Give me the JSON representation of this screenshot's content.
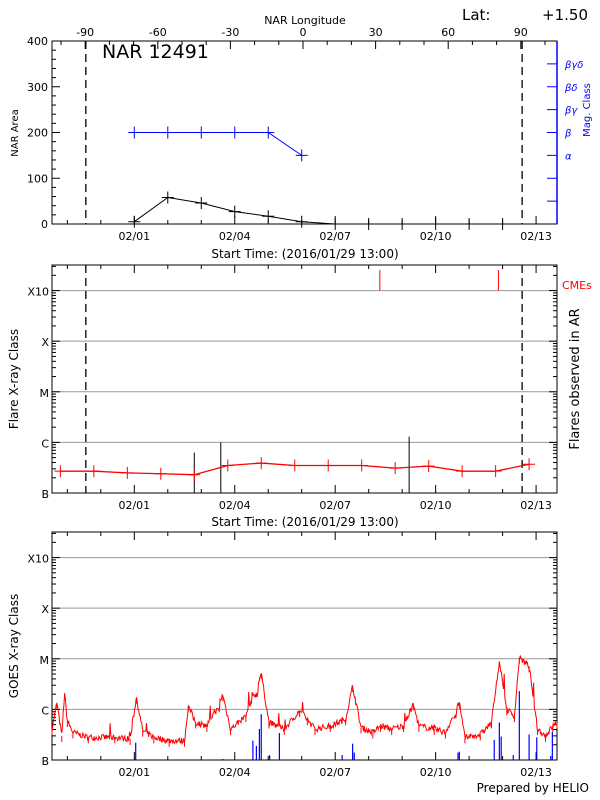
{
  "lat_label": "Lat:",
  "lat_value": "+1.50",
  "footer": "Prepared by HELIO",
  "colors": {
    "area": "#000000",
    "mag_class": "#0000ff",
    "flare_avg": "#ff0000",
    "cme": "#ff0000",
    "flare_obs": "#000000",
    "goes_long": "#ff0000",
    "goes_short": "#0000ff",
    "grid": "#999999"
  },
  "chart_data": [
    {
      "type": "line",
      "title": "NAR 12491",
      "xlabel": "Start Time: (2016/01/29 13:00)",
      "x2label": "NAR Longitude",
      "ylabel": "NAR Area",
      "y2label": "Mag. Class",
      "xlim": [
        "2016-01-29 13:00",
        "2016-02-13 15:00"
      ],
      "xticks": [
        "02/01",
        "02/04",
        "02/07",
        "02/10",
        "02/13"
      ],
      "x2ticks": [
        -90,
        -60,
        -30,
        0,
        30,
        60,
        90
      ],
      "ylim": [
        0,
        400
      ],
      "yticks": [
        0,
        100,
        200,
        300,
        400
      ],
      "y2_categories": [
        "α",
        "β",
        "βγ",
        "βδ",
        "βγδ"
      ],
      "limb_crossings": [
        "2016-01-30 13:15",
        "2016-02-12 14:00"
      ],
      "area_series": {
        "x": [
          "2016-02-01 00:00",
          "2016-02-02 00:00",
          "2016-02-03 00:00",
          "2016-02-04 00:00",
          "2016-02-05 00:00",
          "2016-02-06 00:00",
          "2016-02-07 00:00",
          "2016-02-08 00:00",
          "2016-02-09 00:00",
          "2016-02-10 00:00",
          "2016-02-11 00:00",
          "2016-02-12 00:00"
        ],
        "y": [
          5,
          58,
          46,
          27,
          17,
          5,
          0,
          0,
          0,
          0,
          0,
          0
        ]
      },
      "mag_series": {
        "x": [
          "2016-02-01 00:00",
          "2016-02-02 00:00",
          "2016-02-03 00:00",
          "2016-02-04 00:00",
          "2016-02-05 00:00",
          "2016-02-06 00:00"
        ],
        "y": [
          "β",
          "β",
          "β",
          "β",
          "β",
          "α"
        ]
      }
    },
    {
      "type": "line",
      "xlabel": "Start Time: (2016/01/29 13:00)",
      "ylabel": "Flare X-ray Class",
      "y2label": "Flares observed in AR",
      "cme_label": "CMEs",
      "scale": "log",
      "xlim": [
        "2016-01-29 13:00",
        "2016-02-13 15:00"
      ],
      "xticks": [
        "02/01",
        "02/04",
        "02/07",
        "02/10",
        "02/13"
      ],
      "ylim_wm2": [
        1e-07,
        0.0032
      ],
      "yticks": [
        {
          "label": "B",
          "value": 1e-07
        },
        {
          "label": "C",
          "value": 1e-06
        },
        {
          "label": "M",
          "value": 1e-05
        },
        {
          "label": "X",
          "value": 0.0001
        },
        {
          "label": "X10",
          "value": 0.001
        }
      ],
      "grid": true,
      "limb_crossings": [
        "2016-01-30 13:15",
        "2016-02-12 14:00"
      ],
      "daily_flux": {
        "x": [
          "2016-01-29 19:00",
          "2016-01-30 19:00",
          "2016-01-31 19:00",
          "2016-02-01 19:00",
          "2016-02-02 19:00",
          "2016-02-03 19:00",
          "2016-02-04 19:00",
          "2016-02-05 19:00",
          "2016-02-06 19:00",
          "2016-02-07 19:00",
          "2016-02-08 19:00",
          "2016-02-09 19:00",
          "2016-02-10 19:00",
          "2016-02-11 19:00",
          "2016-02-12 19:00"
        ],
        "y": [
          2.7e-07,
          2.7e-07,
          2.5e-07,
          2.4e-07,
          2.3e-07,
          3.5e-07,
          3.9e-07,
          3.5e-07,
          3.5e-07,
          3.5e-07,
          3.1e-07,
          3.4e-07,
          2.7e-07,
          2.7e-07,
          3.7e-07
        ]
      },
      "flares_observed": [
        {
          "time": "2016-02-02 19:00",
          "flux": 6.3e-07
        },
        {
          "time": "2016-02-03 14:00",
          "flux": 1e-06
        },
        {
          "time": "2016-02-09 05:00",
          "flux": 1.3e-06
        }
      ],
      "cmes": [
        "2016-02-08 08:00",
        "2016-02-11 21:00"
      ]
    },
    {
      "type": "line",
      "ylabel": "GOES X-ray Class",
      "scale": "log",
      "xlim": [
        "2016-01-29 13:00",
        "2016-02-13 15:00"
      ],
      "xticks": [
        "02/01",
        "02/04",
        "02/07",
        "02/10",
        "02/13"
      ],
      "ylim_wm2": [
        1e-07,
        0.0032
      ],
      "yticks": [
        {
          "label": "B",
          "value": 1e-07
        },
        {
          "label": "C",
          "value": 1e-06
        },
        {
          "label": "M",
          "value": 1e-05
        },
        {
          "label": "X",
          "value": 0.0001
        },
        {
          "label": "X10",
          "value": 0.001
        }
      ],
      "grid": true,
      "long_channel": {
        "x": [
          "2016-01-29 13:00",
          "2016-01-29 16:30",
          "2016-01-29 20:00",
          "2016-01-29 22:00",
          "2016-01-30 00:00",
          "2016-01-30 04:00",
          "2016-01-30 15:00",
          "2016-01-31 10:00",
          "2016-01-31 21:00",
          "2016-02-01 01:30",
          "2016-02-01 06:00",
          "2016-02-01 14:00",
          "2016-02-02 01:00",
          "2016-02-02 12:00",
          "2016-02-02 14:40",
          "2016-02-02 20:00",
          "2016-02-03 04:00",
          "2016-02-03 15:30",
          "2016-02-03 21:00",
          "2016-02-04 08:00",
          "2016-02-04 19:00",
          "2016-02-05 00:30",
          "2016-02-05 11:30",
          "2016-02-05 22:30",
          "2016-02-06 04:00",
          "2016-02-06 09:30",
          "2016-02-06 20:30",
          "2016-02-07 07:30",
          "2016-02-07 12:30",
          "2016-02-07 18:30",
          "2016-02-08 03:00",
          "2016-02-08 08:30",
          "2016-02-08 16:30",
          "2016-02-09 01:00",
          "2016-02-09 08:00",
          "2016-02-09 12:00",
          "2016-02-09 23:00",
          "2016-02-10 07:00",
          "2016-02-10 17:00",
          "2016-02-10 21:00",
          "2016-02-11 08:00",
          "2016-02-11 16:00",
          "2016-02-11 21:40",
          "2016-02-12 03:00",
          "2016-02-12 08:30",
          "2016-02-12 12:00",
          "2016-02-12 19:00",
          "2016-02-13 01:00",
          "2016-02-13 06:45",
          "2016-02-13 12:00",
          "2016-02-13 15:00"
        ],
        "y": [
          4.1e-07,
          1.35e-06,
          3e-07,
          2.1e-06,
          5.9e-07,
          3.5e-07,
          2.8e-07,
          2.8e-07,
          2.6e-07,
          1.7e-06,
          3.8e-07,
          2.8e-07,
          2.4e-07,
          2.4e-07,
          1.16e-06,
          5.5e-07,
          4.7e-07,
          1.9e-06,
          4.1e-07,
          7.4e-07,
          5.2e-06,
          5.5e-07,
          4.1e-07,
          9.3e-07,
          6.4e-07,
          4.1e-07,
          4.7e-07,
          6.4e-07,
          2.9e-06,
          4.4e-07,
          3.5e-07,
          4.7e-07,
          4.1e-07,
          4.7e-07,
          1.25e-06,
          4.7e-07,
          4.1e-07,
          3.5e-07,
          1.35e-06,
          2.8e-07,
          3.2e-07,
          5.5e-07,
          8.9e-06,
          1e-06,
          7.4e-07,
          1.06e-05,
          7.1e-06,
          4.1e-07,
          3e-07,
          4.7e-07,
          5.5e-07
        ]
      },
      "short_channel": {
        "x": [
          "2016-02-01 01:00",
          "2016-02-03 15:30",
          "2016-02-04 13:00",
          "2016-02-04 15:30",
          "2016-02-04 17:40",
          "2016-02-04 19:00",
          "2016-02-05 01:00",
          "2016-02-05 08:00",
          "2016-02-07 05:00",
          "2016-02-07 12:30",
          "2016-02-07 13:40",
          "2016-02-10 16:00",
          "2016-02-10 17:00",
          "2016-02-11 18:00",
          "2016-02-11 21:40",
          "2016-02-11 23:00",
          "2016-02-12 07:40",
          "2016-02-12 12:00",
          "2016-02-12 19:00",
          "2016-02-13 00:30",
          "2016-02-13 10:30",
          "2016-02-13 11:40"
        ],
        "y": [
          2.2e-07,
          1.05e-07,
          2.4e-07,
          1.9e-07,
          4.1e-07,
          8e-07,
          1.25e-07,
          3.4e-07,
          1.25e-07,
          2.1e-07,
          1.4e-07,
          1.4e-07,
          1.46e-07,
          2.5e-07,
          5.5e-07,
          2.9e-07,
          1.25e-07,
          2.3e-06,
          3.2e-07,
          2.8e-07,
          1.2e-07,
          3.6e-07
        ]
      }
    }
  ]
}
